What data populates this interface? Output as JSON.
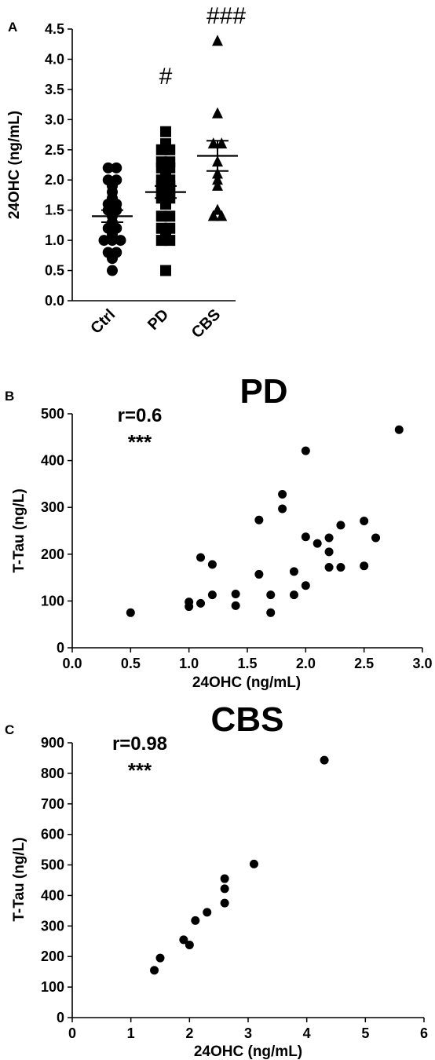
{
  "chart_data": [
    {
      "panel": "A",
      "type": "scatter",
      "categories": [
        "Ctrl",
        "PD",
        "CBS"
      ],
      "ylabel": "24OHC (ng/mL)",
      "ylim": [
        0,
        4.5
      ],
      "yticks": [
        "0.0",
        "0.5",
        "1.0",
        "1.5",
        "2.0",
        "2.5",
        "3.0",
        "3.5",
        "4.0",
        "4.5"
      ],
      "significance": [
        "",
        "#",
        "###"
      ],
      "series": [
        {
          "marker": "circle",
          "values": [
            0.5,
            0.7,
            0.8,
            0.8,
            1.0,
            1.0,
            1.0,
            1.1,
            1.2,
            1.2,
            1.3,
            1.4,
            1.5,
            1.5,
            1.6,
            1.6,
            1.7,
            1.8,
            1.9,
            2.0,
            2.0,
            2.2,
            2.2
          ],
          "mean": 1.4,
          "sem": 0.1
        },
        {
          "marker": "square",
          "values": [
            0.5,
            1.0,
            1.0,
            1.1,
            1.2,
            1.2,
            1.4,
            1.4,
            1.6,
            1.7,
            1.7,
            1.8,
            1.8,
            1.9,
            1.9,
            2.0,
            2.0,
            2.1,
            2.2,
            2.2,
            2.3,
            2.3,
            2.5,
            2.5,
            2.6,
            2.8
          ],
          "mean": 1.8,
          "sem": 0.1
        },
        {
          "marker": "triangle",
          "values": [
            1.4,
            1.4,
            1.5,
            1.9,
            2.0,
            2.1,
            2.3,
            2.6,
            2.6,
            3.1,
            4.3
          ],
          "mean": 2.4,
          "sem": 0.25
        }
      ]
    },
    {
      "panel": "B",
      "type": "scatter",
      "title": "PD",
      "xlabel": "24OHC (ng/mL)",
      "ylabel": "T-Tau (ng/L)",
      "xlim": [
        0,
        3.0
      ],
      "ylim": [
        0,
        500
      ],
      "xticks": [
        "0.0",
        "0.5",
        "1.0",
        "1.5",
        "2.0",
        "2.5",
        "3.0"
      ],
      "yticks": [
        "0",
        "100",
        "200",
        "300",
        "400",
        "500"
      ],
      "annotation_r": "r=0.6",
      "annotation_sig": "***",
      "points": [
        [
          0.5,
          75
        ],
        [
          1.0,
          88
        ],
        [
          1.0,
          98
        ],
        [
          1.1,
          95
        ],
        [
          1.1,
          193
        ],
        [
          1.2,
          113
        ],
        [
          1.2,
          178
        ],
        [
          1.4,
          90
        ],
        [
          1.4,
          115
        ],
        [
          1.6,
          157
        ],
        [
          1.6,
          273
        ],
        [
          1.7,
          75
        ],
        [
          1.7,
          113
        ],
        [
          1.8,
          297
        ],
        [
          1.8,
          328
        ],
        [
          1.9,
          113
        ],
        [
          1.9,
          163
        ],
        [
          2.0,
          133
        ],
        [
          2.0,
          237
        ],
        [
          2.0,
          421
        ],
        [
          2.1,
          223
        ],
        [
          2.2,
          172
        ],
        [
          2.2,
          205
        ],
        [
          2.2,
          235
        ],
        [
          2.3,
          172
        ],
        [
          2.3,
          262
        ],
        [
          2.5,
          175
        ],
        [
          2.5,
          271
        ],
        [
          2.6,
          235
        ],
        [
          2.8,
          466
        ]
      ]
    },
    {
      "panel": "C",
      "type": "scatter",
      "title": "CBS",
      "xlabel": "24OHC (ng/mL)",
      "ylabel": "T-Tau (ng/L)",
      "xlim": [
        0,
        6
      ],
      "ylim": [
        0,
        900
      ],
      "xticks": [
        "0",
        "1",
        "2",
        "3",
        "4",
        "5",
        "6"
      ],
      "yticks": [
        "0",
        "100",
        "200",
        "300",
        "400",
        "500",
        "600",
        "700",
        "800",
        "900"
      ],
      "annotation_r": "r=0.98",
      "annotation_sig": "***",
      "points": [
        [
          1.4,
          155
        ],
        [
          1.5,
          195
        ],
        [
          1.9,
          255
        ],
        [
          2.0,
          238
        ],
        [
          2.1,
          318
        ],
        [
          2.3,
          345
        ],
        [
          2.6,
          375
        ],
        [
          2.6,
          422
        ],
        [
          2.6,
          455
        ],
        [
          3.1,
          503
        ],
        [
          4.3,
          843
        ]
      ]
    }
  ]
}
